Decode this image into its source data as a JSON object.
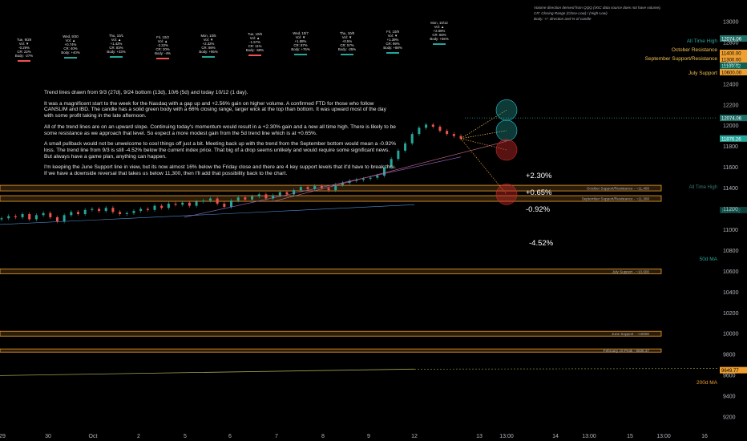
{
  "header_note": {
    "line1": "Volume direction derived from QQQ (IXIC data source does not have volume).",
    "line2": "CR: Closing Range (Close-Low) / (High-Low)",
    "line3": "Body: +/- direction and % of candle"
  },
  "day_stats": [
    {
      "day": "Tue, 9/29",
      "vol": "Vol: ▼",
      "chg": "-0.29%",
      "cr": "CR: 22%",
      "body": "Body: -27%"
    },
    {
      "day": "Wed, 9/30",
      "vol": "Vol: ▲",
      "chg": "+0.74%",
      "cr": "CR: 40%",
      "body": "Body: +40%"
    },
    {
      "day": "Thu, 10/1",
      "vol": "Vol: ▲",
      "chg": "+1.42%",
      "cr": "CR: 83%",
      "body": "Body: +33%"
    },
    {
      "day": "Fri, 10/2",
      "vol": "Vol: ▲",
      "chg": "-2.22%",
      "cr": "CR: 20%",
      "body": "Body: -4%"
    },
    {
      "day": "Mon, 10/5",
      "vol": "Vol: ▼",
      "chg": "+2.32%",
      "cr": "CR: 98%",
      "body": "Body: +95%"
    },
    {
      "day": "Tue, 10/6",
      "vol": "Vol: ▲",
      "chg": "-1.57%",
      "cr": "CR: 11%",
      "body": "Body: -68%"
    },
    {
      "day": "Wed, 10/7",
      "vol": "Vol: ▼",
      "chg": "+1.88%",
      "cr": "CR: 87%",
      "body": "Body: +76%"
    },
    {
      "day": "Thu, 10/8",
      "vol": "Vol: ▼",
      "chg": "+0.5%",
      "cr": "CR: 57%",
      "body": "Body: -25%"
    },
    {
      "day": "Fri, 10/9",
      "vol": "Vol: ▼",
      "chg": "+1.39%",
      "cr": "CR: 99%",
      "body": "Body: +88%"
    },
    {
      "day": "Mon, 10/12",
      "vol": "Vol: ▲",
      "chg": "+2.56%",
      "cr": "CR: 66%",
      "body": "Body: +55%"
    }
  ],
  "notes": [
    "Trend lines drawn from 9/3 (27d), 9/24 bottom (13d), 10/6 (5d) and today 10/12 (1 day).",
    "It was a magnificent start to the week for the Nasdaq with a gap up and +2.56% gain on higher volume. A confirmed FTD for those who follow CANSLIM and IBD. The candle has a solid green body with a 66% closing range, larger wick at the top than bottom. It was upward most of the day with some profit taking in the late afternoon.",
    "All of the trend lines are on an upward slope. Continuing today's momentum would result in a +2.30% gain and a new all time high. There is likely to be some resistance as we approach that level. So expect a more modest gain from the 5d trend line which is at +0.65%.",
    "A small pullback would not be unwelcome to cool things off just a bit. Meeting back up with the trend from the September bottom would mean a -0.92% loss. The trend line from 9/3 is still -4.52% below the current index price. That big of a drop seems unlikely and would require some significant news. But always have a game plan, anything can happen.",
    "I'm keeping the June Support line in view, but its now almost 16% below the Friday close and there are 4 key support levels that it'd have to break thru.  If we have a downside reversal that takes us below 11,300, then I'll add that possibility back to the chart."
  ],
  "projections": {
    "p1": "+2.30%",
    "p2": "+0.65%",
    "p3": "-0.92%",
    "p4": "-4.52%"
  },
  "levels": {
    "oct": "October Support/Resistance - ~11,400",
    "sep": "September Support/Resistance - ~11,300",
    "jul": "July Support - ~10,600",
    "jun": "June Support - ~10000",
    "feb": "February 19 Peak - 9838.37"
  },
  "right_labels": {
    "ath_top": "All Time High",
    "oct": "October Resistance",
    "sep": "September Support/Resistance",
    "jul": "July Support",
    "ath_mid": "All Time High",
    "ma50": "50d MA",
    "ma200": "200d MA"
  },
  "price_badges": {
    "ath": "12074.06",
    "b11400": "11400.00",
    "b11300": "11300.00",
    "b11089": "11189.02",
    "b10600": "10600.00",
    "last": "11876.26",
    "ma50v": "11189.02",
    "ma200v": "9649.77"
  },
  "colors": {
    "up": "#26a69a",
    "down": "#ef5350",
    "band": "#f0a030",
    "teal": "#26c6da",
    "red": "#c62828",
    "ma200": "#a5a24d"
  },
  "chart_data": {
    "type": "line",
    "title": "",
    "xlabel": "",
    "ylabel": "",
    "ylim": [
      9100,
      13100
    ],
    "y_ticks": [
      9200,
      9400,
      9600,
      9800,
      10000,
      10200,
      10400,
      10600,
      10800,
      11000,
      11200,
      11400,
      11600,
      11800,
      12000,
      12200,
      12400,
      12600,
      12800,
      13000
    ],
    "x_tick_labels": [
      "29",
      "30",
      "Oct",
      "2",
      "5",
      "6",
      "7",
      "8",
      "9",
      "12",
      "13",
      "13:00",
      "14",
      "13:00",
      "15",
      "13:00",
      "16"
    ],
    "grid": false,
    "series": [
      {
        "kind": "price",
        "values": [
          11110,
          11130,
          11120,
          11150,
          11100,
          11140,
          11160,
          11120,
          11080,
          11140,
          11170,
          11150,
          11190,
          11200,
          11180,
          11210,
          11170,
          11150,
          11160,
          11180,
          11200,
          11190,
          11230,
          11210,
          11250,
          11240,
          11260,
          11230,
          11270,
          11280,
          11300,
          11250,
          11220,
          11280,
          11310,
          11290,
          11320,
          11340,
          11300,
          11330,
          11360,
          11340,
          11380,
          11410,
          11390,
          11420,
          11400,
          11380,
          11430,
          11450,
          11470,
          11480,
          11490,
          11500,
          11520,
          11600,
          11680,
          11760,
          11830,
          11920,
          11980,
          12010,
          11990,
          11950,
          11920,
          11900,
          11876
        ]
      }
    ],
    "levels": [
      12074.06,
      11400,
      11300,
      10600,
      10000,
      9838.37
    ],
    "ma50": 11189.02,
    "ma200": 9649.77,
    "projections": [
      {
        "label": "+2.30%",
        "value": 12150
      },
      {
        "label": "+0.65%",
        "value": 11953
      },
      {
        "label": "-0.92%",
        "value": 11767
      },
      {
        "label": "-4.52%",
        "value": 11340
      }
    ]
  }
}
